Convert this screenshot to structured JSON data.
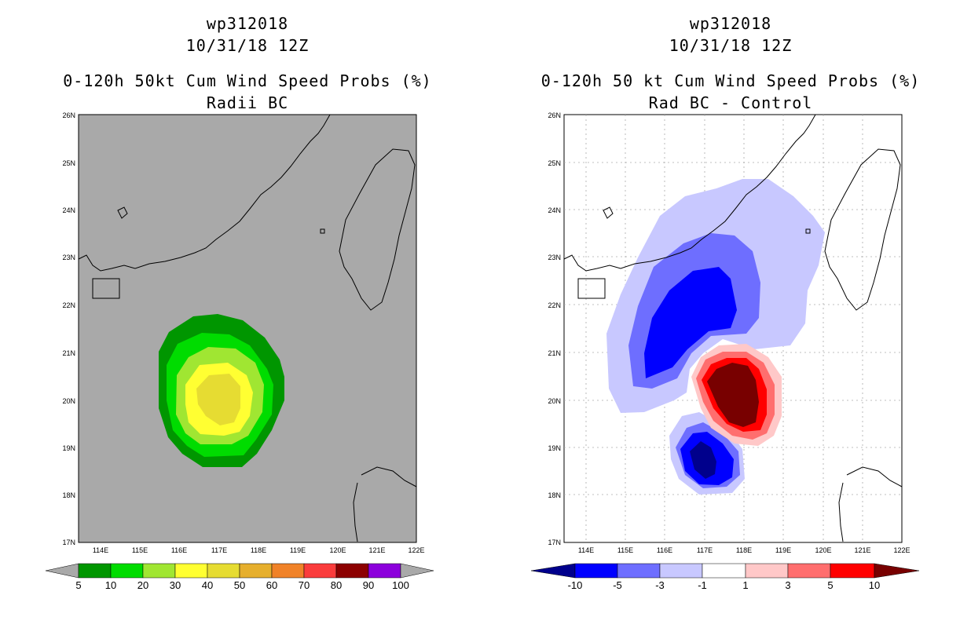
{
  "left_panel": {
    "storm_id": "wp312018",
    "datetime": "10/31/18 12Z",
    "product": "0-120h 50kt Cum Wind Speed Probs (%)",
    "subtitle": "Radii BC",
    "lon_labels": [
      "114E",
      "115E",
      "116E",
      "117E",
      "118E",
      "119E",
      "120E",
      "121E",
      "122E"
    ],
    "lat_labels": [
      "26N",
      "25N",
      "24N",
      "23N",
      "22N",
      "21N",
      "20N",
      "19N",
      "18N",
      "17N"
    ],
    "colorbar": {
      "labels": [
        "5",
        "10",
        "20",
        "30",
        "40",
        "50",
        "60",
        "70",
        "80",
        "90",
        "100"
      ],
      "colors": [
        "#009600",
        "#00dc00",
        "#a0e632",
        "#e6dc32",
        "#e6af2d",
        "#f08228",
        "#fa3c3c",
        "#f00082",
        "#a000c8"
      ]
    }
  },
  "right_panel": {
    "storm_id": "wp312018",
    "datetime": "10/31/18 12Z",
    "product": "0-120h 50 kt Cum Wind Speed Probs (%)",
    "subtitle": "Rad BC - Control",
    "lon_labels": [
      "114E",
      "115E",
      "116E",
      "117E",
      "118E",
      "119E",
      "120E",
      "121E",
      "122E"
    ],
    "lat_labels": [
      "26N",
      "25N",
      "24N",
      "23N",
      "22N",
      "21N",
      "20N",
      "19N",
      "18N",
      "17N"
    ],
    "colorbar": {
      "labels": [
        "-10",
        "-5",
        "-3",
        "-1",
        "1",
        "3",
        "5",
        "10"
      ],
      "colors": [
        "#00008c",
        "#0000ff",
        "#6e6eff",
        "#c8c8ff",
        "#ffffff",
        "#ffc8c8",
        "#ff6e6e",
        "#ff0000",
        "#780000"
      ]
    }
  },
  "chart_data": {
    "type": "map",
    "fields": [
      {
        "name": "Radii BC",
        "units": "%",
        "peak_value_approx": 40,
        "center_lon": 117.0,
        "center_lat": 20.1
      },
      {
        "name": "Rad BC - Control",
        "units": "%",
        "negative_center_lon": 116.7,
        "negative_center_lat": 21.6,
        "positive_center_lon": 117.8,
        "positive_center_lat": 20.1,
        "secondary_negative_center_lon": 117.0,
        "secondary_negative_center_lat": 18.9
      }
    ]
  }
}
